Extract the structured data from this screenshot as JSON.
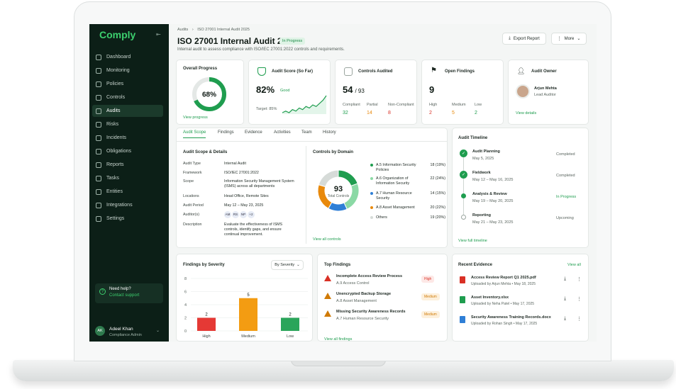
{
  "app": {
    "logo": "Comply"
  },
  "sidebar": {
    "items": [
      {
        "label": "Dashboard"
      },
      {
        "label": "Monitoring"
      },
      {
        "label": "Policies"
      },
      {
        "label": "Controls"
      },
      {
        "label": "Audits",
        "active": true
      },
      {
        "label": "Risks"
      },
      {
        "label": "Incidents"
      },
      {
        "label": "Obligations"
      },
      {
        "label": "Reports"
      },
      {
        "label": "Tasks"
      },
      {
        "label": "Entities"
      },
      {
        "label": "Integrations"
      },
      {
        "label": "Settings"
      }
    ],
    "help": {
      "title": "Need help?",
      "link": "Contact support"
    },
    "user": {
      "initials": "AK",
      "name": "Adeel Khan",
      "role": "Compliance Admin"
    }
  },
  "header": {
    "breadcrumb": [
      "Audits",
      "ISO 27001 Internal Audit 2025"
    ],
    "title": "ISO 27001 Internal Audit 2025",
    "status": "In Progress",
    "subtitle": "Internal audit to assess compliance with ISO/IEC 27001:2022 controls and requirements.",
    "export_label": "Export Report",
    "more_label": "More"
  },
  "stats": {
    "progress": {
      "title": "Overall Progress",
      "value": "68%",
      "fraction": 0.68,
      "link": "View progress"
    },
    "score": {
      "title": "Audit Score (So Far)",
      "value": "82%",
      "rating": "Good",
      "target": "Target: 85%",
      "trend": [
        3,
        4,
        3,
        5,
        4,
        6,
        5,
        7,
        6,
        8,
        7,
        9,
        11,
        14
      ]
    },
    "controls": {
      "title": "Controls Audited",
      "value": "54",
      "total": "/ 93",
      "breakdown": [
        {
          "label": "Compliant",
          "value": "32",
          "color": "#1f9d4f"
        },
        {
          "label": "Partial",
          "value": "14",
          "color": "#e8890c"
        },
        {
          "label": "Non-Compliant",
          "value": "8",
          "color": "#d93025"
        }
      ]
    },
    "findings": {
      "title": "Open Findings",
      "value": "9",
      "breakdown": [
        {
          "label": "High",
          "value": "2",
          "color": "#d93025"
        },
        {
          "label": "Medium",
          "value": "5",
          "color": "#e8890c"
        },
        {
          "label": "Low",
          "value": "2",
          "color": "#1f9d4f"
        }
      ]
    },
    "owner": {
      "title": "Audit Owner",
      "name": "Arjun Mehta",
      "role": "Lead Auditor",
      "link": "View details"
    }
  },
  "tabs": [
    "Audit Scope",
    "Findings",
    "Evidence",
    "Activities",
    "Team",
    "History"
  ],
  "scope": {
    "title": "Audit Scope & Details",
    "rows": [
      {
        "k": "Audit Type",
        "v": "Internal Audit"
      },
      {
        "k": "Framework",
        "v": "ISO/IEC 27001:2022"
      },
      {
        "k": "Scope",
        "v": "Information Security Management System (ISMS) across all departments"
      },
      {
        "k": "Locations",
        "v": "Head Office, Remote Sites"
      },
      {
        "k": "Audit Period",
        "v": "May 12 – May 23, 2025"
      },
      {
        "k": "Auditor(s)",
        "v": ""
      },
      {
        "k": "Description",
        "v": "Evaluate the effectiveness of ISMS controls, identify gaps, and ensure continual improvement."
      }
    ],
    "auditors": [
      "AM",
      "RS",
      "NP",
      "+2"
    ]
  },
  "domains": {
    "title": "Controls by Domain",
    "total": "93",
    "total_label": "Total Controls",
    "link": "View all controls",
    "items": [
      {
        "label": "A.5 Information Security Policies",
        "value": "18 (19%)",
        "n": 18,
        "color": "#1f9d4f"
      },
      {
        "label": "A.6 Organization of Information Security",
        "value": "22 (24%)",
        "n": 22,
        "color": "#8bd9a5"
      },
      {
        "label": "A.7 Human Resource Security",
        "value": "14 (15%)",
        "n": 14,
        "color": "#2f7fd6"
      },
      {
        "label": "A.8 Asset Management",
        "value": "20 (22%)",
        "n": 20,
        "color": "#e8890c"
      },
      {
        "label": "Others",
        "value": "19 (20%)",
        "n": 19,
        "color": "#d6dbd8"
      }
    ]
  },
  "timeline": {
    "title": "Audit Timeline",
    "items": [
      {
        "name": "Audit Planning",
        "date": "May 5, 2025",
        "status": "Completed"
      },
      {
        "name": "Fieldwork",
        "date": "May 12 – May 16, 2025",
        "status": "Completed"
      },
      {
        "name": "Analysis & Review",
        "date": "May 19 – May 20, 2025",
        "status": "In Progress"
      },
      {
        "name": "Reporting",
        "date": "May 21 – May 23, 2025",
        "status": "Upcoming"
      }
    ],
    "link": "View full timeline"
  },
  "severity": {
    "title": "Findings by Severity",
    "filter": "By Severity",
    "chart_data": {
      "type": "bar",
      "categories": [
        "High",
        "Medium",
        "Low"
      ],
      "values": [
        2,
        5,
        2
      ],
      "colors": [
        "#e53935",
        "#f39c12",
        "#2aa55a"
      ],
      "ylim": [
        0,
        8
      ],
      "yticks": [
        0,
        2,
        4,
        6,
        8
      ],
      "title": "Findings by Severity"
    }
  },
  "top_findings": {
    "title": "Top Findings",
    "items": [
      {
        "title": "Incomplete Access Review Process",
        "sub": "A.9 Access Control",
        "sev": "High",
        "color": "#d93025",
        "bg": "#fde8e6"
      },
      {
        "title": "Unencrypted Backup Storage",
        "sub": "A.8 Asset Management",
        "sev": "Medium",
        "color": "#d07a06",
        "bg": "#fdf0dc"
      },
      {
        "title": "Missing Security Awareness Records",
        "sub": "A.7 Human Resource Security",
        "sev": "Medium",
        "color": "#d07a06",
        "bg": "#fdf0dc"
      }
    ],
    "link": "View all findings"
  },
  "evidence": {
    "title": "Recent Evidence",
    "link": "View all",
    "items": [
      {
        "name": "Access Review Report Q1 2025.pdf",
        "meta": "Uploaded by Arjun Mehta • May 18, 2025",
        "color": "#d93025"
      },
      {
        "name": "Asset Inventory.xlsx",
        "meta": "Uploaded by Neha Patel • May 17, 2025",
        "color": "#1f9d4f"
      },
      {
        "name": "Security Awareness Training Records.docx",
        "meta": "Uploaded by Rohan Singh • May 17, 2025",
        "color": "#2f7fd6"
      }
    ]
  }
}
